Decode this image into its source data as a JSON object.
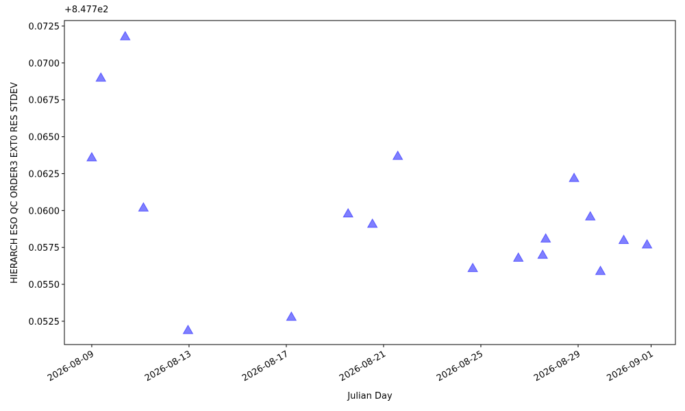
{
  "chart_data": {
    "type": "scatter",
    "xlabel": "Julian Day",
    "ylabel": "HIERARCH ESO QC ORDER3 EXT0 RES STDEV",
    "y_offset_label": "+8.477e2",
    "marker": "triangle",
    "color": "rgba(0,0,255,0.5)",
    "edge_color": "rgba(0,0,255,0.5)",
    "x": [
      "2026-08-09T00:00",
      "2026-08-09T09:00",
      "2026-08-10T09:00",
      "2026-08-11T03:00",
      "2026-08-12T23:00",
      "2026-08-17T05:00",
      "2026-08-19T13:00",
      "2026-08-20T13:00",
      "2026-08-21T14:00",
      "2026-08-24T16:00",
      "2026-08-26T13:00",
      "2026-08-27T13:00",
      "2026-08-27T16:00",
      "2026-08-28T20:00",
      "2026-08-29T12:00",
      "2026-08-29T22:00",
      "2026-08-30T21:00",
      "2026-08-31T20:00"
    ],
    "values": [
      0.0636,
      0.069,
      0.0718,
      0.0602,
      0.0519,
      0.0528,
      0.0598,
      0.0591,
      0.0637,
      0.0561,
      0.0568,
      0.057,
      0.0581,
      0.0622,
      0.0596,
      0.0559,
      0.058,
      0.0577
    ],
    "xlim": [
      "2026-08-07T21:00",
      "2026-09-02T00:00"
    ],
    "xticks": [
      "2026-08-09",
      "2026-08-13",
      "2026-08-17",
      "2026-08-21",
      "2026-08-25",
      "2026-08-29",
      "2026-09-01"
    ],
    "ylim": [
      0.05092,
      0.07287
    ],
    "yticks": [
      0.0525,
      {
        "value": 0.055,
        "label": "0.0550"
      },
      0.0575,
      {
        "value": 0.06,
        "label": "0.0600"
      },
      0.0625,
      {
        "value": 0.065,
        "label": "0.0650"
      },
      0.0675,
      {
        "value": 0.07,
        "label": "0.0700"
      },
      0.0725
    ],
    "grid": false
  }
}
